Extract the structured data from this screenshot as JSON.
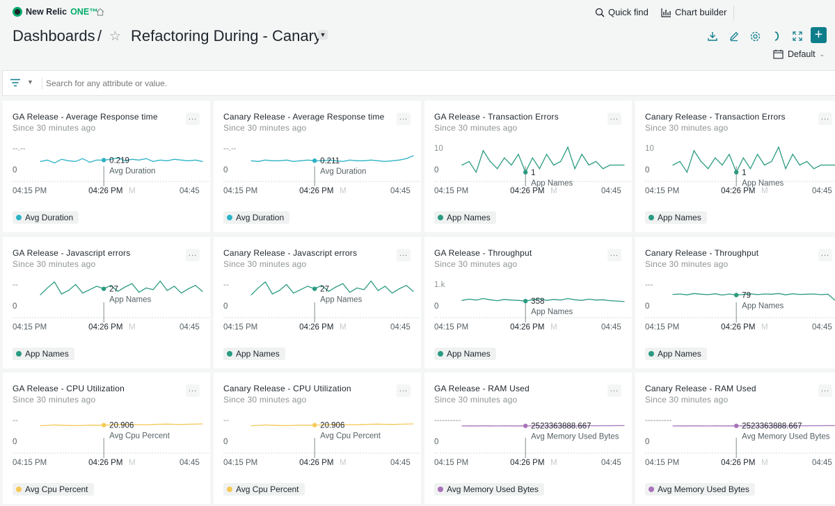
{
  "app": {
    "logo_text": "New Relic ",
    "logo_one": "ONE™"
  },
  "topbar": {
    "quick_find": "Quick find",
    "chart_builder": "Chart builder"
  },
  "header": {
    "breadcrumb": "Dashboards",
    "separator": "/",
    "title": "Refactoring During - Canary",
    "time_picker": "Default"
  },
  "filter": {
    "placeholder": "Search for any attribute or value."
  },
  "colors": {
    "accent": "#0e7e8b",
    "teal": "#2db3c6",
    "green": "#2a9a81",
    "yellow": "#f6c856",
    "purple": "#a772b9"
  },
  "widgets": [
    {
      "title": "GA Release - Average Response time",
      "subtitle": "Since 30 minutes ago",
      "more": "...",
      "legend": "Avg Duration",
      "cursor_value": "0.219",
      "cursor_label": "Avg Duration",
      "y_top": "--.--",
      "y_zero": "0",
      "x_start": "04:15 PM",
      "x_cursor": "04:26 PM",
      "x_ghost": "M",
      "x_end": "04:45",
      "chart_data": {
        "type": "line",
        "color": "teal",
        "series": [
          {
            "name": "Avg Duration",
            "values": [
              0.2,
              0.22,
              0.18,
              0.23,
              0.21,
              0.2,
              0.24,
              0.19,
              0.22,
              0.219,
              0.23,
              0.25,
              0.21,
              0.23,
              0.22,
              0.24,
              0.2,
              0.22,
              0.21,
              0.23,
              0.22,
              0.21,
              0.22,
              0.2
            ]
          }
        ],
        "ylim": [
          0,
          0.6
        ],
        "cursor_index": 9
      }
    },
    {
      "title": "Canary Release - Average Response time",
      "subtitle": "Since 30 minutes ago",
      "more": "...",
      "legend": "Avg Duration",
      "cursor_value": "0.211",
      "cursor_label": "Avg Duration",
      "y_top": "--.--",
      "y_zero": "0",
      "x_start": "04:15 PM",
      "x_cursor": "04:26 PM",
      "x_ghost": "M",
      "x_end": "04:45",
      "chart_data": {
        "type": "line",
        "color": "teal",
        "series": [
          {
            "name": "Avg Duration",
            "values": [
              0.21,
              0.2,
              0.22,
              0.21,
              0.21,
              0.22,
              0.2,
              0.21,
              0.22,
              0.211,
              0.21,
              0.22,
              0.21,
              0.2,
              0.22,
              0.21,
              0.21,
              0.22,
              0.21,
              0.2,
              0.21,
              0.22,
              0.24,
              0.28
            ]
          }
        ],
        "ylim": [
          0,
          0.6
        ],
        "cursor_index": 9
      }
    },
    {
      "title": "GA Release - Transaction Errors",
      "subtitle": "Since 30 minutes ago",
      "more": "...",
      "legend": "App Names",
      "cursor_value": "1",
      "cursor_label": "App Names",
      "y_top": "10",
      "y_zero": "0",
      "x_start": "04:15 PM",
      "x_cursor": "04:26 PM",
      "x_ghost": "M",
      "x_end": "04:45",
      "chart_data": {
        "type": "line",
        "color": "green",
        "series": [
          {
            "name": "App Names",
            "values": [
              3,
              4,
              1,
              7,
              4,
              2,
              5,
              3,
              6,
              1,
              5,
              2,
              6,
              3,
              4,
              8,
              2,
              6,
              3,
              4,
              2,
              3,
              3,
              3
            ]
          }
        ],
        "ylim": [
          0,
          12
        ],
        "cursor_index": 9
      }
    },
    {
      "title": "Canary Release - Transaction Errors",
      "subtitle": "Since 30 minutes ago",
      "more": "...",
      "legend": "App Names",
      "cursor_value": "1",
      "cursor_label": "App Names",
      "y_top": "10",
      "y_zero": "0",
      "x_start": "04:15 PM",
      "x_cursor": "04:26 PM",
      "x_ghost": "M",
      "x_end": "04:45",
      "chart_data": {
        "type": "line",
        "color": "green",
        "series": [
          {
            "name": "App Names",
            "values": [
              3,
              4,
              1,
              7,
              4,
              2,
              5,
              3,
              6,
              1,
              5,
              2,
              6,
              3,
              4,
              8,
              2,
              6,
              3,
              4,
              2,
              3,
              3,
              3
            ]
          }
        ],
        "ylim": [
          0,
          12
        ],
        "cursor_index": 9
      }
    },
    {
      "title": "GA Release - Javascript errors",
      "subtitle": "Since 30 minutes ago",
      "more": "...",
      "legend": "App Names",
      "cursor_value": "27",
      "cursor_label": "App Names",
      "y_top": "--",
      "y_zero": "0",
      "x_start": "04:15 PM",
      "x_cursor": "04:26 PM",
      "x_ghost": "M",
      "x_end": "04:45",
      "chart_data": {
        "type": "line",
        "color": "green",
        "series": [
          {
            "name": "App Names",
            "values": [
              20,
              28,
              35,
              21,
              25,
              32,
              22,
              26,
              30,
              27,
              31,
              24,
              29,
              33,
              23,
              28,
              26,
              36,
              25,
              30,
              22,
              27,
              31,
              24
            ]
          }
        ],
        "ylim": [
          0,
          50
        ],
        "cursor_index": 9
      }
    },
    {
      "title": "Canary Release - Javascript errors",
      "subtitle": "Since 30 minutes ago",
      "more": "...",
      "legend": "App Names",
      "cursor_value": "27",
      "cursor_label": "App Names",
      "y_top": "--",
      "y_zero": "0",
      "x_start": "04:15 PM",
      "x_cursor": "04:26 PM",
      "x_ghost": "M",
      "x_end": "04:45",
      "chart_data": {
        "type": "line",
        "color": "green",
        "series": [
          {
            "name": "App Names",
            "values": [
              20,
              28,
              35,
              21,
              25,
              32,
              22,
              26,
              30,
              27,
              31,
              24,
              29,
              33,
              23,
              28,
              26,
              36,
              25,
              30,
              22,
              27,
              31,
              24
            ]
          }
        ],
        "ylim": [
          0,
          50
        ],
        "cursor_index": 9
      }
    },
    {
      "title": "GA Release - Throughput",
      "subtitle": "Since 30 minutes ago",
      "more": "...",
      "legend": "App Names",
      "cursor_value": "358",
      "cursor_label": "App Names",
      "y_top": "1.k",
      "y_zero": "0",
      "x_start": "04:15 PM",
      "x_cursor": "04:26 PM",
      "x_ghost": "M",
      "x_end": "04:45",
      "chart_data": {
        "type": "line",
        "color": "green",
        "series": [
          {
            "name": "App Names",
            "values": [
              380,
              420,
              390,
              440,
              400,
              370,
              410,
              390,
              380,
              358,
              400,
              430,
              380,
              410,
              390,
              440,
              400,
              380,
              420,
              390,
              400,
              370,
              360,
              340
            ]
          }
        ],
        "ylim": [
          0,
          1400
        ],
        "cursor_index": 9
      }
    },
    {
      "title": "Canary Release - Throughput",
      "subtitle": "Since 30 minutes ago",
      "more": "...",
      "legend": "App Names",
      "cursor_value": "79",
      "cursor_label": "App Names",
      "y_top": "---",
      "y_zero": "0",
      "x_start": "04:15 PM",
      "x_cursor": "04:26 PM",
      "x_ghost": "M",
      "x_end": "04:45",
      "chart_data": {
        "type": "line",
        "color": "green",
        "series": [
          {
            "name": "App Names",
            "values": [
              82,
              84,
              80,
              86,
              83,
              81,
              85,
              79,
              84,
              79,
              82,
              85,
              81,
              84,
              83,
              86,
              80,
              85,
              82,
              83,
              84,
              81,
              83,
              55
            ]
          }
        ],
        "ylim": [
          0,
          200
        ],
        "cursor_index": 9
      }
    },
    {
      "title": "GA Release - CPU Utilization",
      "subtitle": "Since 30 minutes ago",
      "more": "...",
      "legend": "Avg Cpu Percent",
      "cursor_value": "20.906",
      "cursor_label": "Avg Cpu Percent",
      "y_top": "--",
      "y_zero": "0",
      "x_start": "04:15 PM",
      "x_cursor": "04:26 PM",
      "x_ghost": "M",
      "x_end": "04:45",
      "chart_data": {
        "type": "line",
        "color": "yellow",
        "series": [
          {
            "name": "Avg Cpu Percent",
            "values": [
              20.3,
              20.6,
              21.0,
              20.8,
              20.5,
              20.4,
              20.6,
              20.9,
              20.8,
              20.906,
              21.0,
              21.4,
              21.6,
              21.5,
              21.3,
              21.2,
              21.5,
              21.7,
              21.8,
              21.6,
              21.5,
              21.7,
              21.9,
              22.0
            ]
          }
        ],
        "ylim": [
          0,
          40
        ],
        "cursor_index": 9
      }
    },
    {
      "title": "Canary Release - CPU Utilization",
      "subtitle": "Since 30 minutes ago",
      "more": "...",
      "legend": "Avg Cpu Percent",
      "cursor_value": "20.906",
      "cursor_label": "Avg Cpu Percent",
      "y_top": "--",
      "y_zero": "0",
      "x_start": "04:15 PM",
      "x_cursor": "04:26 PM",
      "x_ghost": "M",
      "x_end": "04:45",
      "chart_data": {
        "type": "line",
        "color": "yellow",
        "series": [
          {
            "name": "Avg Cpu Percent",
            "values": [
              20.3,
              20.6,
              21.0,
              20.8,
              20.5,
              20.4,
              20.6,
              20.9,
              20.8,
              20.906,
              21.0,
              21.4,
              21.6,
              21.5,
              21.3,
              21.2,
              21.5,
              21.7,
              21.8,
              21.6,
              21.5,
              21.7,
              21.9,
              22.0
            ]
          }
        ],
        "ylim": [
          0,
          40
        ],
        "cursor_index": 9
      }
    },
    {
      "title": "GA Release - RAM Used",
      "subtitle": "Since 30 minutes ago",
      "more": "...",
      "legend": "Avg Memory Used Bytes",
      "cursor_value": "2523363888.667",
      "cursor_label": "Avg Memory Used Bytes",
      "y_top": "----------",
      "y_zero": "0",
      "x_start": "04:15 PM",
      "x_cursor": "04:26 PM",
      "x_ghost": "M",
      "x_end": "04:45",
      "chart_data": {
        "type": "line",
        "color": "purple",
        "series": [
          {
            "name": "Avg Memory Used Bytes",
            "values": [
              2.51,
              2.52,
              2.52,
              2.53,
              2.52,
              2.51,
              2.53,
              2.52,
              2.52,
              2.523,
              2.53,
              2.53,
              2.52,
              2.53,
              2.54,
              2.53,
              2.52,
              2.53,
              2.54,
              2.53,
              2.54,
              2.54,
              2.55,
              2.55
            ]
          }
        ],
        "ylim": [
          0,
          5
        ],
        "cursor_index": 9
      }
    },
    {
      "title": "Canary Release - RAM Used",
      "subtitle": "Since 30 minutes ago",
      "more": "...",
      "legend": "Avg Memory Used Bytes",
      "cursor_value": "2523363888.667",
      "cursor_label": "Avg Memory Used Bytes",
      "y_top": "----------",
      "y_zero": "0",
      "x_start": "04:15 PM",
      "x_cursor": "04:26 PM",
      "x_ghost": "M",
      "x_end": "04:45",
      "chart_data": {
        "type": "line",
        "color": "purple",
        "series": [
          {
            "name": "Avg Memory Used Bytes",
            "values": [
              2.51,
              2.52,
              2.52,
              2.53,
              2.52,
              2.51,
              2.53,
              2.52,
              2.52,
              2.523,
              2.53,
              2.53,
              2.52,
              2.53,
              2.54,
              2.53,
              2.52,
              2.53,
              2.54,
              2.53,
              2.54,
              2.54,
              2.55,
              2.55
            ]
          }
        ],
        "ylim": [
          0,
          5
        ],
        "cursor_index": 9
      }
    }
  ]
}
